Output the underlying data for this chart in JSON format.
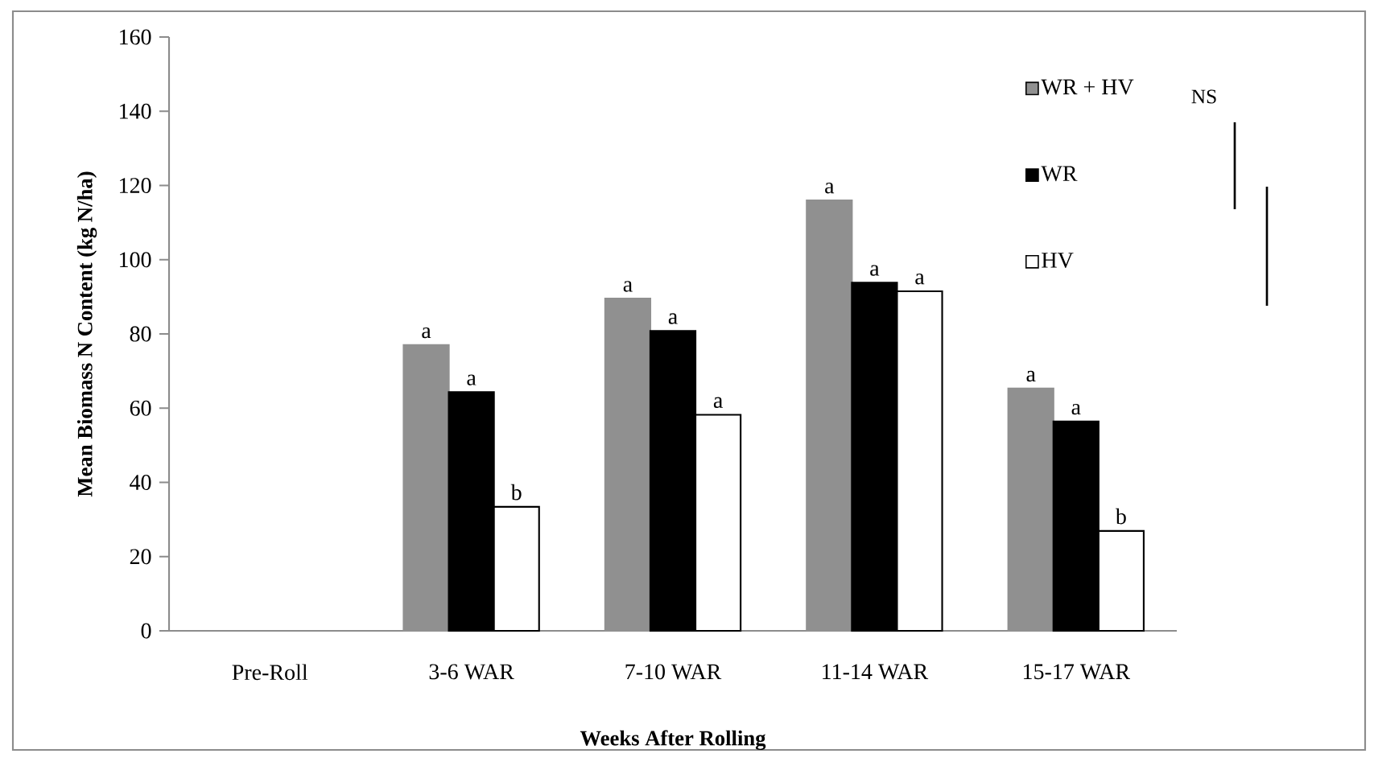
{
  "chart_data": {
    "type": "bar",
    "xlabel": "Weeks After Rolling",
    "ylabel": "Mean Biomass N Content (kg N/ha)",
    "categories": [
      "Pre-Roll",
      "3-6 WAR",
      "7-10 WAR",
      "11-14 WAR",
      "15-17 WAR"
    ],
    "series": [
      {
        "name": "WR + HV",
        "color": "#909090",
        "values": [
          null,
          77,
          89.5,
          116,
          65.3
        ]
      },
      {
        "name": "WR",
        "color": "#000000",
        "values": [
          null,
          64.3,
          80.8,
          93.8,
          56.4
        ]
      },
      {
        "name": "HV",
        "color": "#ffffff",
        "values": [
          null,
          33.4,
          58.2,
          91.5,
          26.9
        ]
      }
    ],
    "ylim": [
      0,
      160
    ],
    "yticks": [
      0,
      20,
      40,
      60,
      80,
      100,
      120,
      140,
      160
    ],
    "grid": false,
    "legend": "top right",
    "annotations": [
      "a",
      "a",
      "b",
      "a",
      "a",
      "a",
      "a",
      "a",
      "a",
      "a",
      "a",
      "b",
      "NS"
    ]
  }
}
